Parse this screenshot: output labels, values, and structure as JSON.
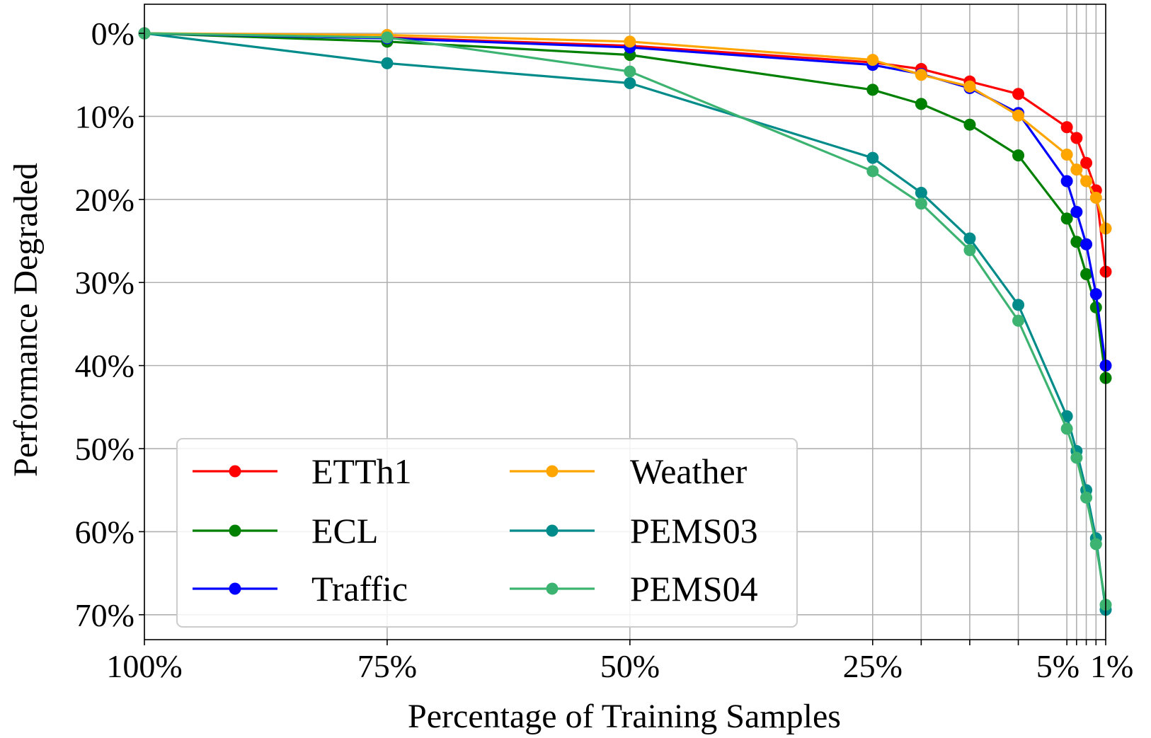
{
  "chart_data": {
    "type": "line",
    "title": "",
    "xlabel": "Percentage of Training Samples",
    "ylabel": "Performance Degraded",
    "xlim": [
      100,
      1
    ],
    "ylim": [
      73,
      -3.5
    ],
    "x_ticks": [
      {
        "value": 100,
        "label": "100%"
      },
      {
        "value": 75,
        "label": "75%"
      },
      {
        "value": 50,
        "label": "50%"
      },
      {
        "value": 25,
        "label": "25%"
      },
      {
        "value": 5,
        "label": "5%"
      },
      {
        "value": 1,
        "label": "1%"
      }
    ],
    "x_minor_gridlines": [
      20,
      15,
      10,
      4,
      3,
      2
    ],
    "y_ticks": [
      {
        "value": 0,
        "label": "0%"
      },
      {
        "value": 10,
        "label": "10%"
      },
      {
        "value": 20,
        "label": "20%"
      },
      {
        "value": 30,
        "label": "30%"
      },
      {
        "value": 40,
        "label": "40%"
      },
      {
        "value": 50,
        "label": "50%"
      },
      {
        "value": 60,
        "label": "60%"
      },
      {
        "value": 70,
        "label": "70%"
      }
    ],
    "grid": true,
    "legend_position": "lower-left",
    "legend_columns": 2,
    "x": [
      100,
      75,
      50,
      25,
      20,
      15,
      10,
      5,
      4,
      3,
      2,
      1
    ],
    "series": [
      {
        "name": "ETTh1",
        "color": "#ff0000",
        "values": [
          0,
          0.5,
          1.5,
          3.5,
          4.3,
          5.8,
          7.3,
          11.3,
          12.6,
          15.6,
          18.9,
          28.7
        ]
      },
      {
        "name": "ECL",
        "color": "#008000",
        "values": [
          0,
          1.0,
          2.6,
          6.8,
          8.5,
          11.0,
          14.7,
          22.3,
          25.1,
          29.0,
          33.0,
          41.5
        ]
      },
      {
        "name": "Traffic",
        "color": "#0000ff",
        "values": [
          0,
          0.6,
          1.7,
          3.8,
          4.9,
          6.6,
          9.6,
          17.8,
          21.5,
          25.4,
          31.4,
          40.0
        ]
      },
      {
        "name": "Weather",
        "color": "#ffa500",
        "values": [
          0,
          0.2,
          1.0,
          3.2,
          5.0,
          6.4,
          9.9,
          14.6,
          16.4,
          17.8,
          19.8,
          23.5
        ]
      },
      {
        "name": "PEMS03",
        "color": "#008b8b",
        "values": [
          0,
          3.6,
          6.0,
          15.0,
          19.2,
          24.7,
          32.7,
          46.1,
          50.3,
          55.0,
          60.8,
          69.4
        ]
      },
      {
        "name": "PEMS04",
        "color": "#3cb371",
        "values": [
          0,
          0.5,
          4.6,
          16.6,
          20.5,
          26.1,
          34.6,
          47.6,
          51.1,
          55.9,
          61.5,
          68.8
        ]
      }
    ]
  }
}
